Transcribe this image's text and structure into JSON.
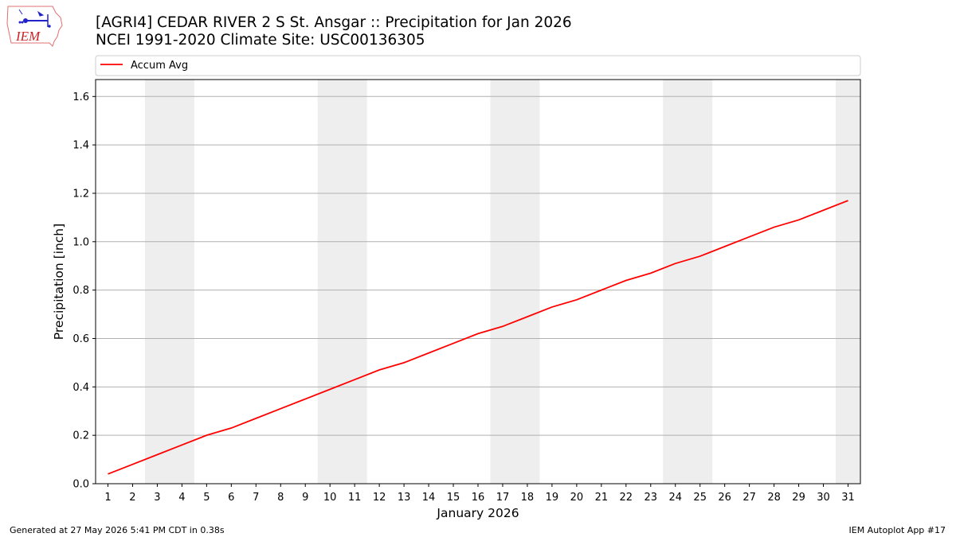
{
  "header": {
    "title_line1": "[AGRI4] CEDAR RIVER 2 S St. Ansgar :: Precipitation for Jan 2026",
    "title_line2": "NCEI 1991-2020 Climate Site: USC00136305",
    "logo_text": "IEM"
  },
  "footer": {
    "generated": "Generated at 27 May 2026 5:41 PM CDT in 0.38s",
    "app": "IEM Autoplot App #17"
  },
  "chart_data": {
    "type": "line",
    "xlabel": "January 2026",
    "ylabel": "Precipitation [inch]",
    "xlim": [
      0.5,
      31.5
    ],
    "ylim": [
      0,
      1.67
    ],
    "yticks": [
      0.0,
      0.2,
      0.4,
      0.6,
      0.8,
      1.0,
      1.2,
      1.4,
      1.6
    ],
    "ytick_labels": [
      "0.0",
      "0.2",
      "0.4",
      "0.6",
      "0.8",
      "1.0",
      "1.2",
      "1.4",
      "1.6"
    ],
    "xticks": [
      1,
      2,
      3,
      4,
      5,
      6,
      7,
      8,
      9,
      10,
      11,
      12,
      13,
      14,
      15,
      16,
      17,
      18,
      19,
      20,
      21,
      22,
      23,
      24,
      25,
      26,
      27,
      28,
      29,
      30,
      31
    ],
    "xtick_labels": [
      "1",
      "2",
      "3",
      "4",
      "5",
      "6",
      "7",
      "8",
      "9",
      "10",
      "11",
      "12",
      "13",
      "14",
      "15",
      "16",
      "17",
      "18",
      "19",
      "20",
      "21",
      "22",
      "23",
      "24",
      "25",
      "26",
      "27",
      "28",
      "29",
      "30",
      "31"
    ],
    "grid": "horizontal",
    "legend": "top-left, above plot",
    "weekend_shading": [
      [
        2.5,
        4.5
      ],
      [
        9.5,
        11.5
      ],
      [
        16.5,
        18.5
      ],
      [
        23.5,
        25.5
      ],
      [
        30.5,
        31.5
      ]
    ],
    "shade_color": "#eeeeee",
    "series": [
      {
        "name": "Accum Avg",
        "color": "#ff0000",
        "x": [
          1,
          2,
          3,
          4,
          5,
          6,
          7,
          8,
          9,
          10,
          11,
          12,
          13,
          14,
          15,
          16,
          17,
          18,
          19,
          20,
          21,
          22,
          23,
          24,
          25,
          26,
          27,
          28,
          29,
          30,
          31
        ],
        "values": [
          0.04,
          0.08,
          0.12,
          0.16,
          0.2,
          0.23,
          0.27,
          0.31,
          0.35,
          0.39,
          0.43,
          0.47,
          0.5,
          0.54,
          0.58,
          0.62,
          0.65,
          0.69,
          0.73,
          0.76,
          0.8,
          0.84,
          0.87,
          0.91,
          0.94,
          0.98,
          1.02,
          1.06,
          1.09,
          1.13,
          1.17
        ]
      }
    ]
  }
}
